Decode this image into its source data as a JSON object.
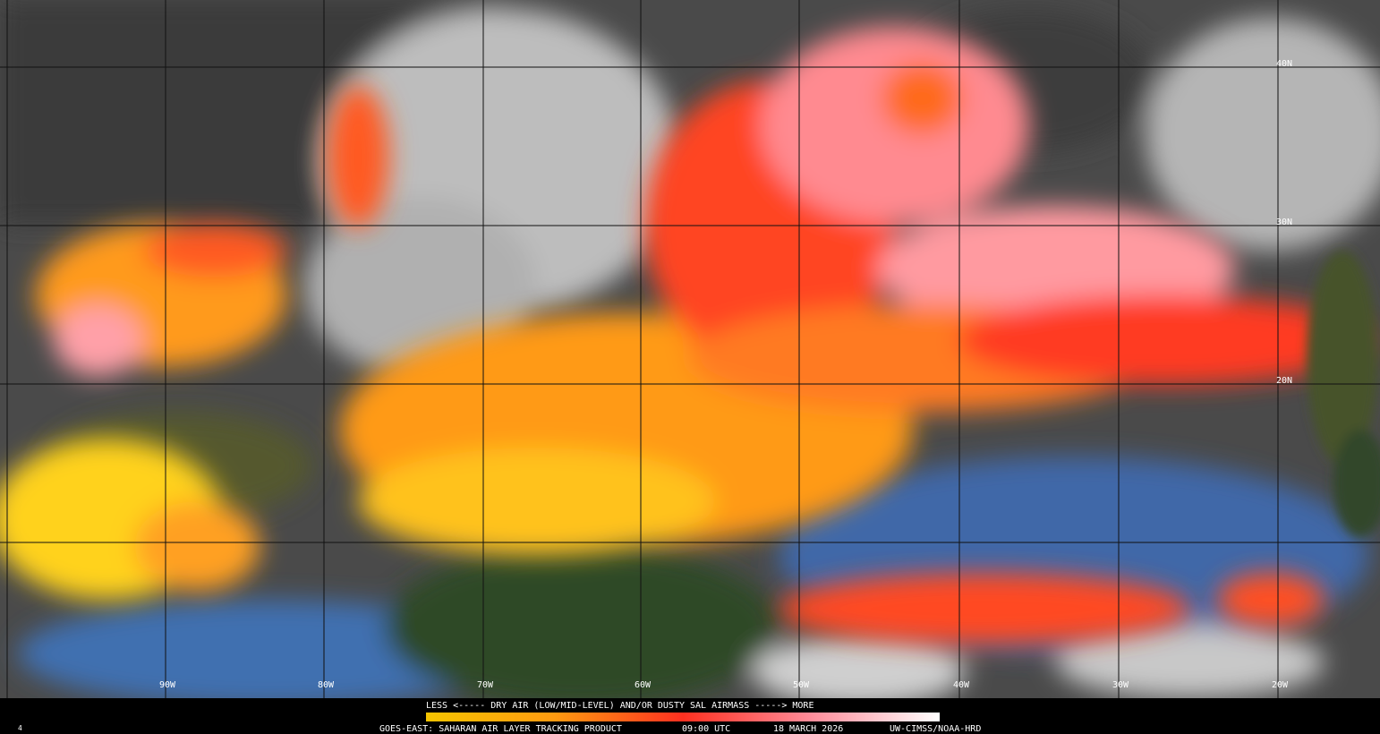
{
  "map": {
    "latitude_labels": [
      "40N",
      "30N",
      "20N"
    ],
    "longitude_labels": [
      "90W",
      "80W",
      "70W",
      "60W",
      "50W",
      "40W",
      "30W",
      "20W"
    ]
  },
  "legend": {
    "scale_caption": "LESS <----- DRY AIR (LOW/MID-LEVEL) AND/OR DUSTY SAL AIRMASS -----> MORE"
  },
  "footer": {
    "frame": "4",
    "product": "GOES-EAST: SAHARAN AIR LAYER TRACKING PRODUCT",
    "time": "09:00 UTC",
    "date": "18 MARCH 2026",
    "credit": "UW-CIMSS/NOAA-HRD"
  }
}
